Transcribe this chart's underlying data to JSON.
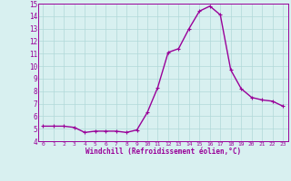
{
  "x": [
    0,
    1,
    2,
    3,
    4,
    5,
    6,
    7,
    8,
    9,
    10,
    11,
    12,
    13,
    14,
    15,
    16,
    17,
    18,
    19,
    20,
    21,
    22,
    23
  ],
  "y": [
    5.2,
    5.2,
    5.2,
    5.1,
    4.7,
    4.8,
    4.8,
    4.8,
    4.7,
    4.9,
    6.3,
    8.3,
    11.1,
    11.4,
    13.0,
    14.4,
    14.8,
    14.1,
    9.7,
    8.2,
    7.5,
    7.3,
    7.2,
    6.8
  ],
  "line_color": "#990099",
  "marker": "+",
  "marker_size": 3,
  "background_color": "#d8f0f0",
  "grid_color": "#b0d8d8",
  "xlabel": "Windchill (Refroidissement éolien,°C)",
  "xlabel_color": "#990099",
  "tick_color": "#990099",
  "ylim": [
    4,
    15
  ],
  "xlim": [
    -0.5,
    23.5
  ],
  "yticks": [
    4,
    5,
    6,
    7,
    8,
    9,
    10,
    11,
    12,
    13,
    14,
    15
  ],
  "xticks": [
    0,
    1,
    2,
    3,
    4,
    5,
    6,
    7,
    8,
    9,
    10,
    11,
    12,
    13,
    14,
    15,
    16,
    17,
    18,
    19,
    20,
    21,
    22,
    23
  ],
  "linewidth": 1.0
}
